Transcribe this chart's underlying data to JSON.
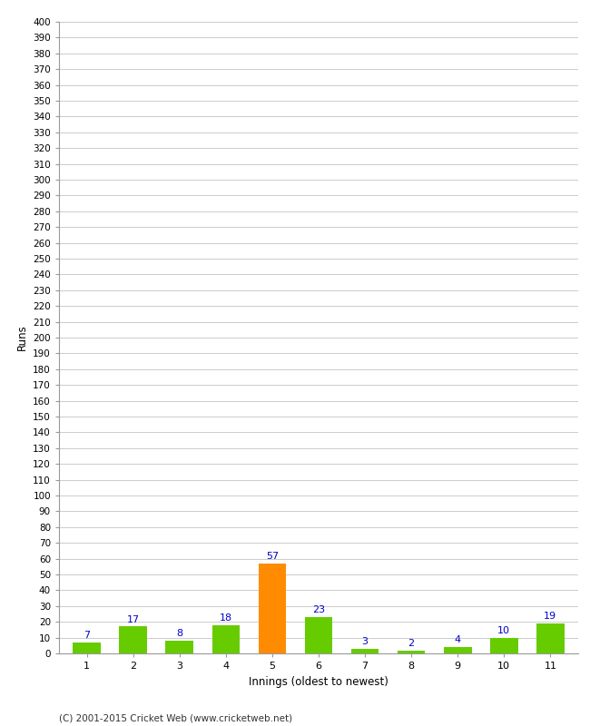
{
  "xlabel": "Innings (oldest to newest)",
  "ylabel": "Runs",
  "categories": [
    1,
    2,
    3,
    4,
    5,
    6,
    7,
    8,
    9,
    10,
    11
  ],
  "values": [
    7,
    17,
    8,
    18,
    57,
    23,
    3,
    2,
    4,
    10,
    19
  ],
  "bar_colors": [
    "#66cc00",
    "#66cc00",
    "#66cc00",
    "#66cc00",
    "#ff8c00",
    "#66cc00",
    "#66cc00",
    "#66cc00",
    "#66cc00",
    "#66cc00",
    "#66cc00"
  ],
  "label_color": "#0000cc",
  "ylim": [
    0,
    400
  ],
  "background_color": "#ffffff",
  "grid_color": "#cccccc",
  "footer": "(C) 2001-2015 Cricket Web (www.cricketweb.net)"
}
